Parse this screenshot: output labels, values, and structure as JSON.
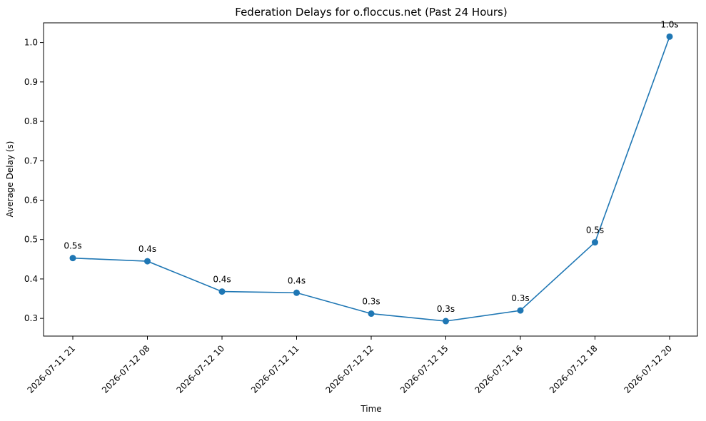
{
  "chart_data": {
    "type": "line",
    "title": "Federation Delays for o.floccus.net (Past 24 Hours)",
    "xlabel": "Time",
    "ylabel": "Average Delay (s)",
    "categories": [
      "2026-07-11 21",
      "2026-07-12 08",
      "2026-07-12 10",
      "2026-07-12 11",
      "2026-07-12 12",
      "2026-07-12 15",
      "2026-07-12 16",
      "2026-07-12 18",
      "2026-07-12 20"
    ],
    "values": [
      0.453,
      0.445,
      0.368,
      0.365,
      0.312,
      0.293,
      0.32,
      0.493,
      1.015
    ],
    "point_labels": [
      "0.5s",
      "0.4s",
      "0.4s",
      "0.4s",
      "0.3s",
      "0.3s",
      "0.3s",
      "0.5s",
      "1.0s"
    ],
    "ylim": [
      0.255,
      1.05
    ],
    "yticks": [
      "0.3",
      "0.4",
      "0.5",
      "0.6",
      "0.7",
      "0.8",
      "0.9",
      "1.0"
    ],
    "grid": false,
    "legend": "none",
    "color": "#1f77b4"
  }
}
